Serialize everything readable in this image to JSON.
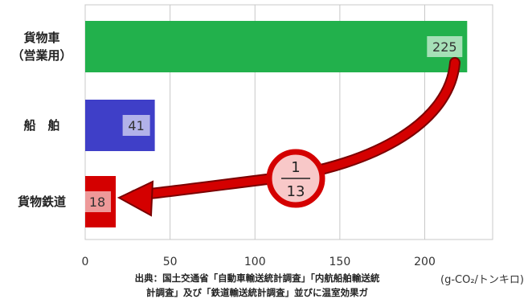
{
  "chart_data": {
    "type": "bar",
    "orientation": "horizontal",
    "categories": [
      {
        "lines": [
          "貨物車",
          "（営業用）"
        ]
      },
      {
        "lines": [
          "船　舶"
        ]
      },
      {
        "lines": [
          "貨物鉄道"
        ]
      }
    ],
    "values": [
      225,
      41,
      18
    ],
    "value_labels": [
      "225",
      "41",
      "18"
    ],
    "bar_colors": [
      "#22b14c",
      "#3f3fc8",
      "#d40000"
    ],
    "xlim": [
      0,
      240
    ],
    "xticks": [
      0,
      50,
      100,
      150,
      200
    ],
    "xunit": "(g-CO₂/トンキロ)",
    "grid": true,
    "annotation": {
      "numerator": "1",
      "denominator": "13",
      "from": "225",
      "to": "18"
    }
  },
  "source": {
    "line1": "出典：国土交通省「自動車輸送統計調査」「内航船舶輸送統",
    "line2": "計調査」及び「鉄道輸送統計調査」並びに温室効果ガ"
  }
}
